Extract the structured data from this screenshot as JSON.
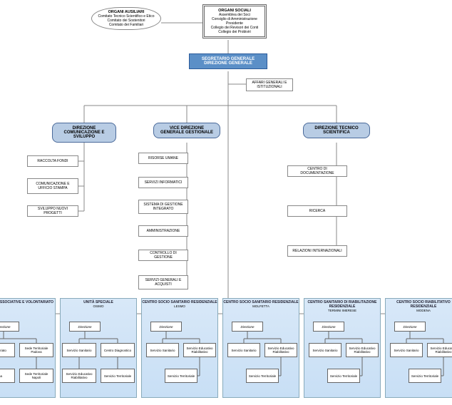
{
  "colors": {
    "seg_bg": "#5b8fc7",
    "dir_bg": "#b8cce4",
    "line": "#888888",
    "panel_top": "#d8e8f8",
    "panel_bot": "#c8dff5"
  },
  "top": {
    "aux": {
      "title": "ORGANI AUSILIARI",
      "l1": "Comitato Tecnico Scientifico e Etico",
      "l2": "Comitato dei Sostenitori",
      "l3": "Comitato dei Familiari"
    },
    "soc": {
      "title": "ORGANI SOCIALI",
      "l1": "Assemblea dei Soci",
      "l2": "Consiglio di Amministrazione",
      "l3": "Presidente",
      "l4": "Collegio dei Revisori dei Conti",
      "l5": "Collegio dei Probiviri"
    },
    "seg": {
      "l1": "SEGRETARIO GENERALE",
      "l2": "DIREZIONE GENERALE"
    },
    "affari": "AFFARI GENERALI E ISTITUZIONALI"
  },
  "dirs": {
    "com": {
      "title": "DIREZIONE COMUNICAZIONE E SVILUPPO",
      "b1": "RACCOLTA FONDI",
      "b2": "COMUNICAZIONE E UFFICIO STAMPA",
      "b3": "SVILUPPO NUOVI PROGETTI"
    },
    "vice": {
      "title": "VICE DIREZIONE GENERALE GESTIONALE",
      "b1": "RISORSE UMANE",
      "b2": "SERVIZI INFORMATICI",
      "b3": "SISTEMA DI GESTIONE INTEGRATO",
      "b4": "AMMINISTRAZIONE",
      "b5": "CONTROLLO DI GESTIONE",
      "b6": "SERVIZI GENERALI E ACQUISTI"
    },
    "tec": {
      "title": "DIREZIONE TECNICO SCIENTIFICA",
      "b1": "CENTRO DI DOCUMENTAZIONE",
      "b2": "RICERCA",
      "b3": "RELAZIONI INTERNAZIONALI"
    }
  },
  "direzione_label": "Direzione",
  "bottom": [
    {
      "title": "ATTIVITÀ ASSOCIATIVE E VOLONTARIATO",
      "leaves": [
        "Volontariato",
        "Sede Territoriale Padova",
        "Roma",
        "Sede Territoriale Napoli"
      ]
    },
    {
      "title": "UNITÀ SPECIALE",
      "sub": "OSIMO",
      "leaves": [
        "Servizio Sanitario",
        "Centro Diagnostico",
        "Servizio Educativo Riabilitativo",
        "Servizio Territoriale"
      ]
    },
    {
      "title": "CENTRO SOCIO SANITARIO RESIDENZIALE",
      "sub": "LESMO",
      "leaves": [
        "Servizio Sanitario",
        "Servizio Educativo Riabilitativo",
        "Servizio Territoriale"
      ]
    },
    {
      "title": "CENTRO SOCIO SANITARIO RESIDENZIALE",
      "sub": "MOLFETTA",
      "leaves": [
        "Servizio Sanitario",
        "Servizio Educativo Riabilitativo",
        "Servizio Territoriale"
      ]
    },
    {
      "title": "CENTRO SANITARIO DI RIABILITAZIONE RESIDENZIALE",
      "sub": "TERMINI IMERESE",
      "leaves": [
        "Servizio Sanitario",
        "Servizio Educativo Riabilitativo",
        "Servizio Territoriale"
      ]
    },
    {
      "title": "CENTRO SOCIO RIABILITATIVO RESIDENZIALE",
      "sub": "MODENA",
      "leaves": [
        "Servizio Sanitario",
        "Servizio Educativo Riabilitativo",
        "Servizio Territoriale"
      ]
    }
  ]
}
